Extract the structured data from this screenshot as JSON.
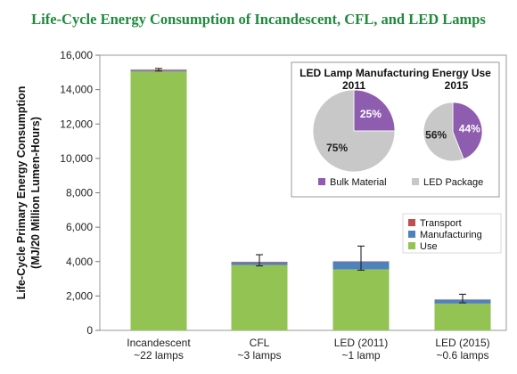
{
  "title": "Life-Cycle Energy Consumption of Incandescent, CFL, and LED Lamps",
  "colors": {
    "use": "#92c353",
    "manufacturing": "#4f81bd",
    "transport": "#c0504d",
    "bulk": "#8e5db0",
    "package": "#c8c8c8"
  },
  "chart_data": [
    {
      "type": "bar",
      "ylabel": "Life-Cycle Primary Energy Consumption (MJ/20 Million Lumen-Hours)",
      "ylim": [
        0,
        16000
      ],
      "yticks": [
        "0",
        "2,000",
        "4,000",
        "6,000",
        "8,000",
        "10,000",
        "12,000",
        "14,000",
        "16,000"
      ],
      "categories": [
        "Incandescent",
        "CFL",
        "LED (2011)",
        "LED (2015)"
      ],
      "category_sublabels": [
        "~22 lamps",
        "~3 lamps",
        "~1 lamp",
        "~0.6 lamps"
      ],
      "stacked": true,
      "series": [
        {
          "name": "Use",
          "values": [
            15050,
            3800,
            3550,
            1560
          ]
        },
        {
          "name": "Manufacturing",
          "values": [
            60,
            150,
            450,
            220
          ]
        },
        {
          "name": "Transport",
          "values": [
            50,
            40,
            20,
            20
          ]
        }
      ],
      "error_bars": [
        {
          "low": 15080,
          "high": 15230
        },
        {
          "low": 3750,
          "high": 4400
        },
        {
          "low": 3500,
          "high": 4900
        },
        {
          "low": 1600,
          "high": 2100
        }
      ],
      "legend_position": "right",
      "legend_order": [
        "Transport",
        "Manufacturing",
        "Use"
      ]
    },
    {
      "type": "pie",
      "title": "LED Lamp Manufacturing Energy Use",
      "pies": [
        {
          "label": "2011",
          "slices": [
            {
              "name": "Bulk Material",
              "value": 25,
              "label": "25%"
            },
            {
              "name": "LED Package",
              "value": 75,
              "label": "75%"
            }
          ]
        },
        {
          "label": "2015",
          "slices": [
            {
              "name": "Bulk Material",
              "value": 44,
              "label": "44%"
            },
            {
              "name": "LED Package",
              "value": 56,
              "label": "56%"
            }
          ]
        }
      ],
      "legend": [
        "Bulk Material",
        "LED Package"
      ]
    }
  ]
}
